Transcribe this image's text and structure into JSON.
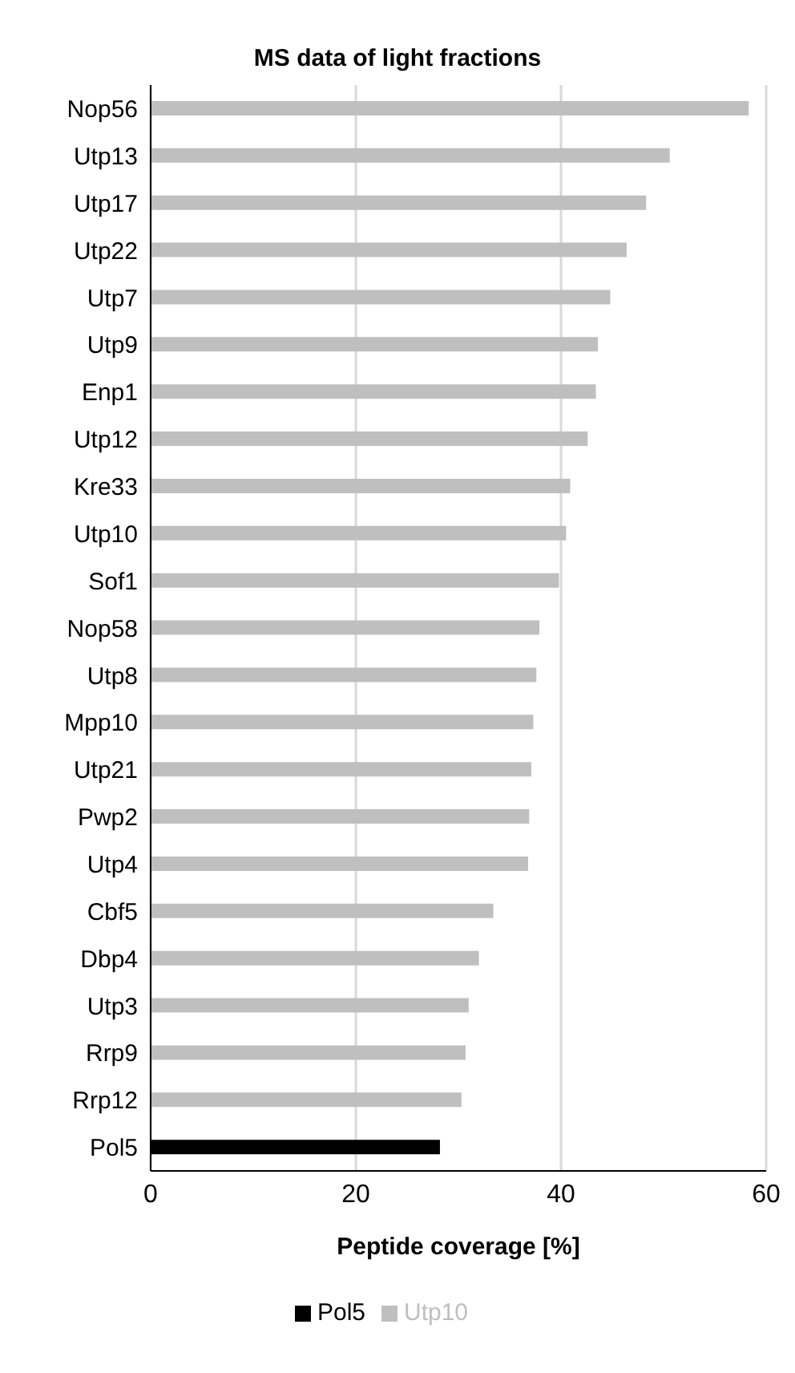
{
  "chart_data": {
    "type": "bar",
    "orientation": "horizontal",
    "title": "MS data of light fractions",
    "xlabel": "Peptide coverage [%]",
    "categories": [
      "Nop56",
      "Utp13",
      "Utp17",
      "Utp22",
      "Utp7",
      "Utp9",
      "Enp1",
      "Utp12",
      "Kre33",
      "Utp10",
      "Sof1",
      "Nop58",
      "Utp8",
      "Mpp10",
      "Utp21",
      "Pwp2",
      "Utp4",
      "Cbf5",
      "Dbp4",
      "Utp3",
      "Rrp9",
      "Rrp12",
      "Pol5"
    ],
    "series": [
      {
        "name": "Utp10",
        "color": "#bfbfbf",
        "values": [
          58.3,
          50.6,
          48.3,
          46.4,
          44.8,
          43.6,
          43.4,
          42.6,
          40.9,
          40.5,
          39.8,
          37.9,
          37.6,
          37.3,
          37.1,
          36.9,
          36.8,
          33.4,
          32.0,
          31.0,
          30.7,
          30.3,
          null
        ]
      },
      {
        "name": "Pol5",
        "color": "#000000",
        "values": [
          null,
          null,
          null,
          null,
          null,
          null,
          null,
          null,
          null,
          null,
          null,
          null,
          null,
          null,
          null,
          null,
          null,
          null,
          null,
          null,
          null,
          null,
          28.2
        ]
      }
    ],
    "xlim": [
      0,
      60
    ],
    "xticks": [
      0,
      20,
      40,
      60
    ],
    "grid": "x",
    "legend": "bottom"
  }
}
